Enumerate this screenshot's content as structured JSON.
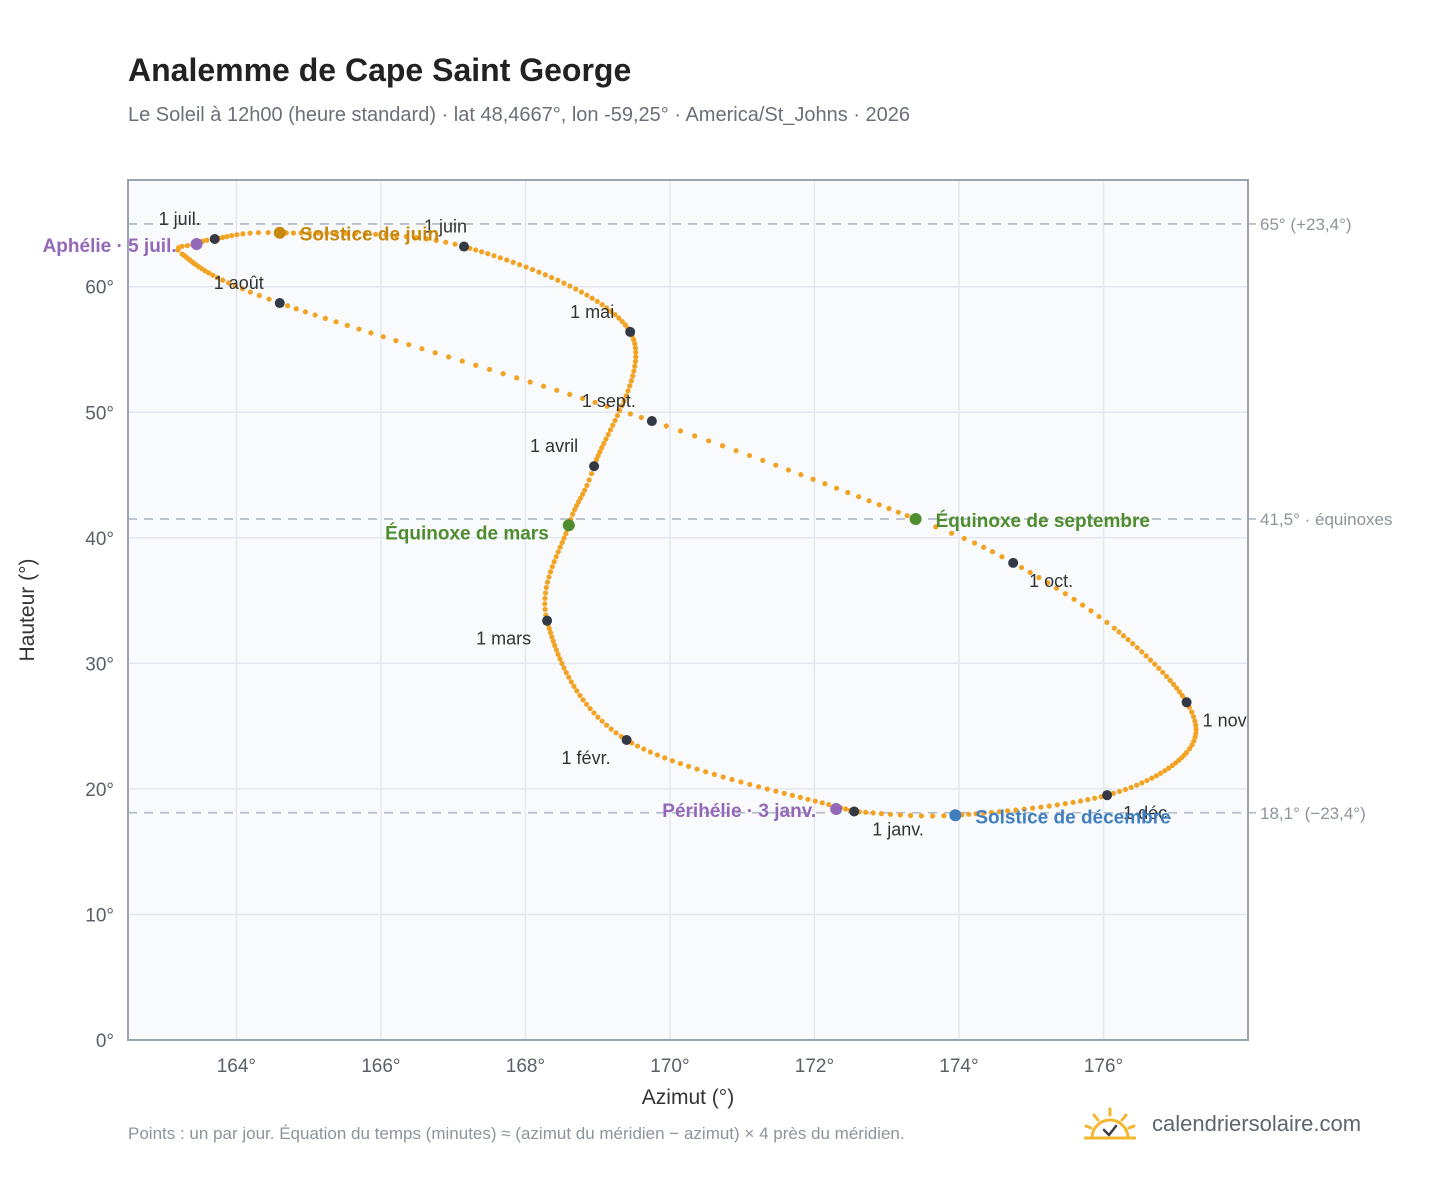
{
  "title": "Analemme de Cape Saint George",
  "subtitle": "Le Soleil à 12h00 (heure standard) · lat 48,4667°, lon -59,25° · America/St_Johns · 2026",
  "footnote": "Points : un par jour. Équation du temps (minutes) ≈ (azimut du méridien − azimut) × 4 près du méridien.",
  "brand": {
    "name": "calendriersolaire.com",
    "icon": "sun-check-icon"
  },
  "colors": {
    "curve": "#f2a324",
    "month": "#333a45",
    "solstice_june": "#c7880d",
    "solstice_december": "#3f7fc0",
    "equinox": "#4f8c2f",
    "apsis": "#9368b8",
    "grid": "#e4e8ee",
    "plot_bg": "#f8fafc",
    "frame": "#9aa3b2",
    "ref": "#b7bec9"
  },
  "chart_data": {
    "type": "scatter",
    "xlabel": "Azimut (°)",
    "ylabel": "Hauteur (°)",
    "xlim": [
      162.5,
      178.0
    ],
    "ylim": [
      0,
      68.5
    ],
    "xticks": [
      164,
      166,
      168,
      170,
      172,
      174,
      176
    ],
    "yticks": [
      0,
      10,
      20,
      30,
      40,
      50,
      60
    ],
    "xtick_labels": [
      "164°",
      "166°",
      "168°",
      "170°",
      "172°",
      "174°",
      "176°"
    ],
    "ytick_labels": [
      "0°",
      "10°",
      "20°",
      "30°",
      "40°",
      "50°",
      "60°"
    ],
    "grid": true,
    "series": [
      {
        "marker": "one point per day",
        "control_points": [
          {
            "day": 0,
            "x": 172.55,
            "y": 18.2
          },
          {
            "day": 31,
            "x": 169.4,
            "y": 23.9
          },
          {
            "day": 59,
            "x": 168.3,
            "y": 33.4
          },
          {
            "day": 78,
            "x": 168.6,
            "y": 41.0
          },
          {
            "day": 90,
            "x": 168.95,
            "y": 45.7
          },
          {
            "day": 120,
            "x": 169.45,
            "y": 56.4
          },
          {
            "day": 151,
            "x": 167.15,
            "y": 63.2
          },
          {
            "day": 171,
            "x": 164.6,
            "y": 64.3
          },
          {
            "day": 181,
            "x": 163.7,
            "y": 63.8
          },
          {
            "day": 185,
            "x": 163.45,
            "y": 63.4
          },
          {
            "day": 191,
            "x": 163.25,
            "y": 62.6
          },
          {
            "day": 212,
            "x": 164.6,
            "y": 58.7
          },
          {
            "day": 243,
            "x": 169.75,
            "y": 49.3
          },
          {
            "day": 265,
            "x": 173.4,
            "y": 41.5
          },
          {
            "day": 273,
            "x": 174.75,
            "y": 38.0
          },
          {
            "day": 285,
            "x": 176.15,
            "y": 32.8
          },
          {
            "day": 304,
            "x": 177.15,
            "y": 26.9
          },
          {
            "day": 316,
            "x": 177.15,
            "y": 22.9
          },
          {
            "day": 334,
            "x": 176.05,
            "y": 19.5
          },
          {
            "day": 354,
            "x": 173.95,
            "y": 17.9
          },
          {
            "day": 365,
            "x": 172.55,
            "y": 18.2
          }
        ]
      }
    ],
    "month_markers": [
      {
        "label": "1 janv.",
        "x": 172.55,
        "y": 18.2
      },
      {
        "label": "1 févr.",
        "x": 169.4,
        "y": 23.9
      },
      {
        "label": "1 mars",
        "x": 168.3,
        "y": 33.4
      },
      {
        "label": "1 avril",
        "x": 168.95,
        "y": 45.7
      },
      {
        "label": "1 mai",
        "x": 169.45,
        "y": 56.4
      },
      {
        "label": "1 juin",
        "x": 167.15,
        "y": 63.2
      },
      {
        "label": "1 juil.",
        "x": 163.7,
        "y": 63.8
      },
      {
        "label": "1 août",
        "x": 164.6,
        "y": 58.7
      },
      {
        "label": "1 sept.",
        "x": 169.75,
        "y": 49.3
      },
      {
        "label": "1 oct.",
        "x": 174.75,
        "y": 38.0
      },
      {
        "label": "1 nov.",
        "x": 177.15,
        "y": 26.9
      },
      {
        "label": "1 déc.",
        "x": 176.05,
        "y": 19.5
      }
    ],
    "events": [
      {
        "label": "Solstice de juin",
        "x": 164.6,
        "y": 64.3,
        "kind": "solstice_june"
      },
      {
        "label": "Équinoxe de mars",
        "x": 168.6,
        "y": 41.0,
        "kind": "equinox"
      },
      {
        "label": "Équinoxe de septembre",
        "x": 173.4,
        "y": 41.5,
        "kind": "equinox"
      },
      {
        "label": "Solstice de décembre",
        "x": 173.95,
        "y": 17.9,
        "kind": "solstice_december"
      },
      {
        "label": "Aphélie · 5 juil.",
        "x": 163.45,
        "y": 63.4,
        "kind": "apsis"
      },
      {
        "label": "Périhélie · 3 janv.",
        "x": 172.3,
        "y": 18.4,
        "kind": "apsis"
      }
    ],
    "reference_lines": [
      {
        "y": 65.0,
        "label": "65° (+23,4°)"
      },
      {
        "y": 41.5,
        "label": "41,5° · équinoxes"
      },
      {
        "y": 18.1,
        "label": "18,1° (−23,4°)"
      }
    ]
  }
}
